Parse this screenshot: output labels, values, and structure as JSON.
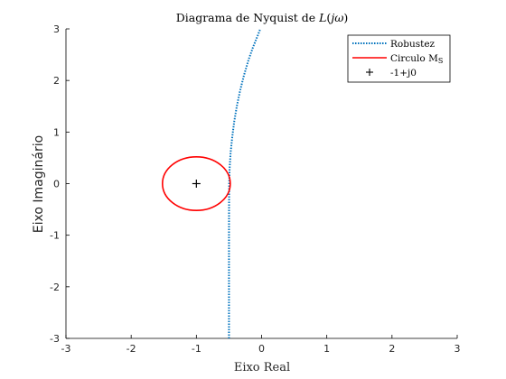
{
  "chart_data": {
    "type": "line",
    "title": "Diagrama de Nyquist de L(jω)",
    "xlabel": "Eixo Real",
    "ylabel": "Eixo Imaginário",
    "xlim": [
      -3,
      3
    ],
    "ylim": [
      -3,
      3
    ],
    "xticks": [
      -3,
      -2,
      -1,
      0,
      1,
      2,
      3
    ],
    "yticks": [
      -3,
      -2,
      -1,
      0,
      1,
      2,
      3
    ],
    "xtick_labels": [
      "-3",
      "-2",
      "-1",
      "0",
      "1",
      "2",
      "3"
    ],
    "ytick_labels": [
      "-3",
      "-2",
      "-1",
      "0",
      "1",
      "2",
      "3"
    ],
    "grid": false,
    "legend_position": "top-right",
    "series": [
      {
        "name": "Robustez",
        "style": "dotted",
        "color": "#0072BD",
        "x": [
          -0.5,
          -0.5,
          -0.5,
          -0.499,
          -0.497,
          -0.49,
          -0.475,
          -0.45,
          -0.42,
          -0.38,
          -0.33,
          -0.27,
          -0.2,
          -0.13,
          -0.05,
          -0.02
        ],
        "y": [
          -3,
          -2,
          -1,
          -0.5,
          0,
          0.3,
          0.6,
          0.9,
          1.2,
          1.5,
          1.8,
          2.1,
          2.4,
          2.65,
          2.9,
          3.0
        ]
      },
      {
        "name": "Circulo M_S",
        "style": "solid",
        "color": "#FF0000",
        "circle": {
          "cx": -1,
          "cy": 0,
          "radius": 0.52
        }
      },
      {
        "name": "-1+j0",
        "style": "marker-plus",
        "color": "#000000",
        "x": [
          -1
        ],
        "y": [
          0
        ]
      }
    ],
    "legend_labels": {
      "robustez": "Robustez",
      "circulo": "Circulo M",
      "circulo_sub": "S",
      "point": "-1+j0"
    },
    "title_parts": {
      "prefix": "Diagrama de Nyquist de ",
      "func": "L",
      "open": "(",
      "var": "jω",
      "close": ")"
    }
  }
}
